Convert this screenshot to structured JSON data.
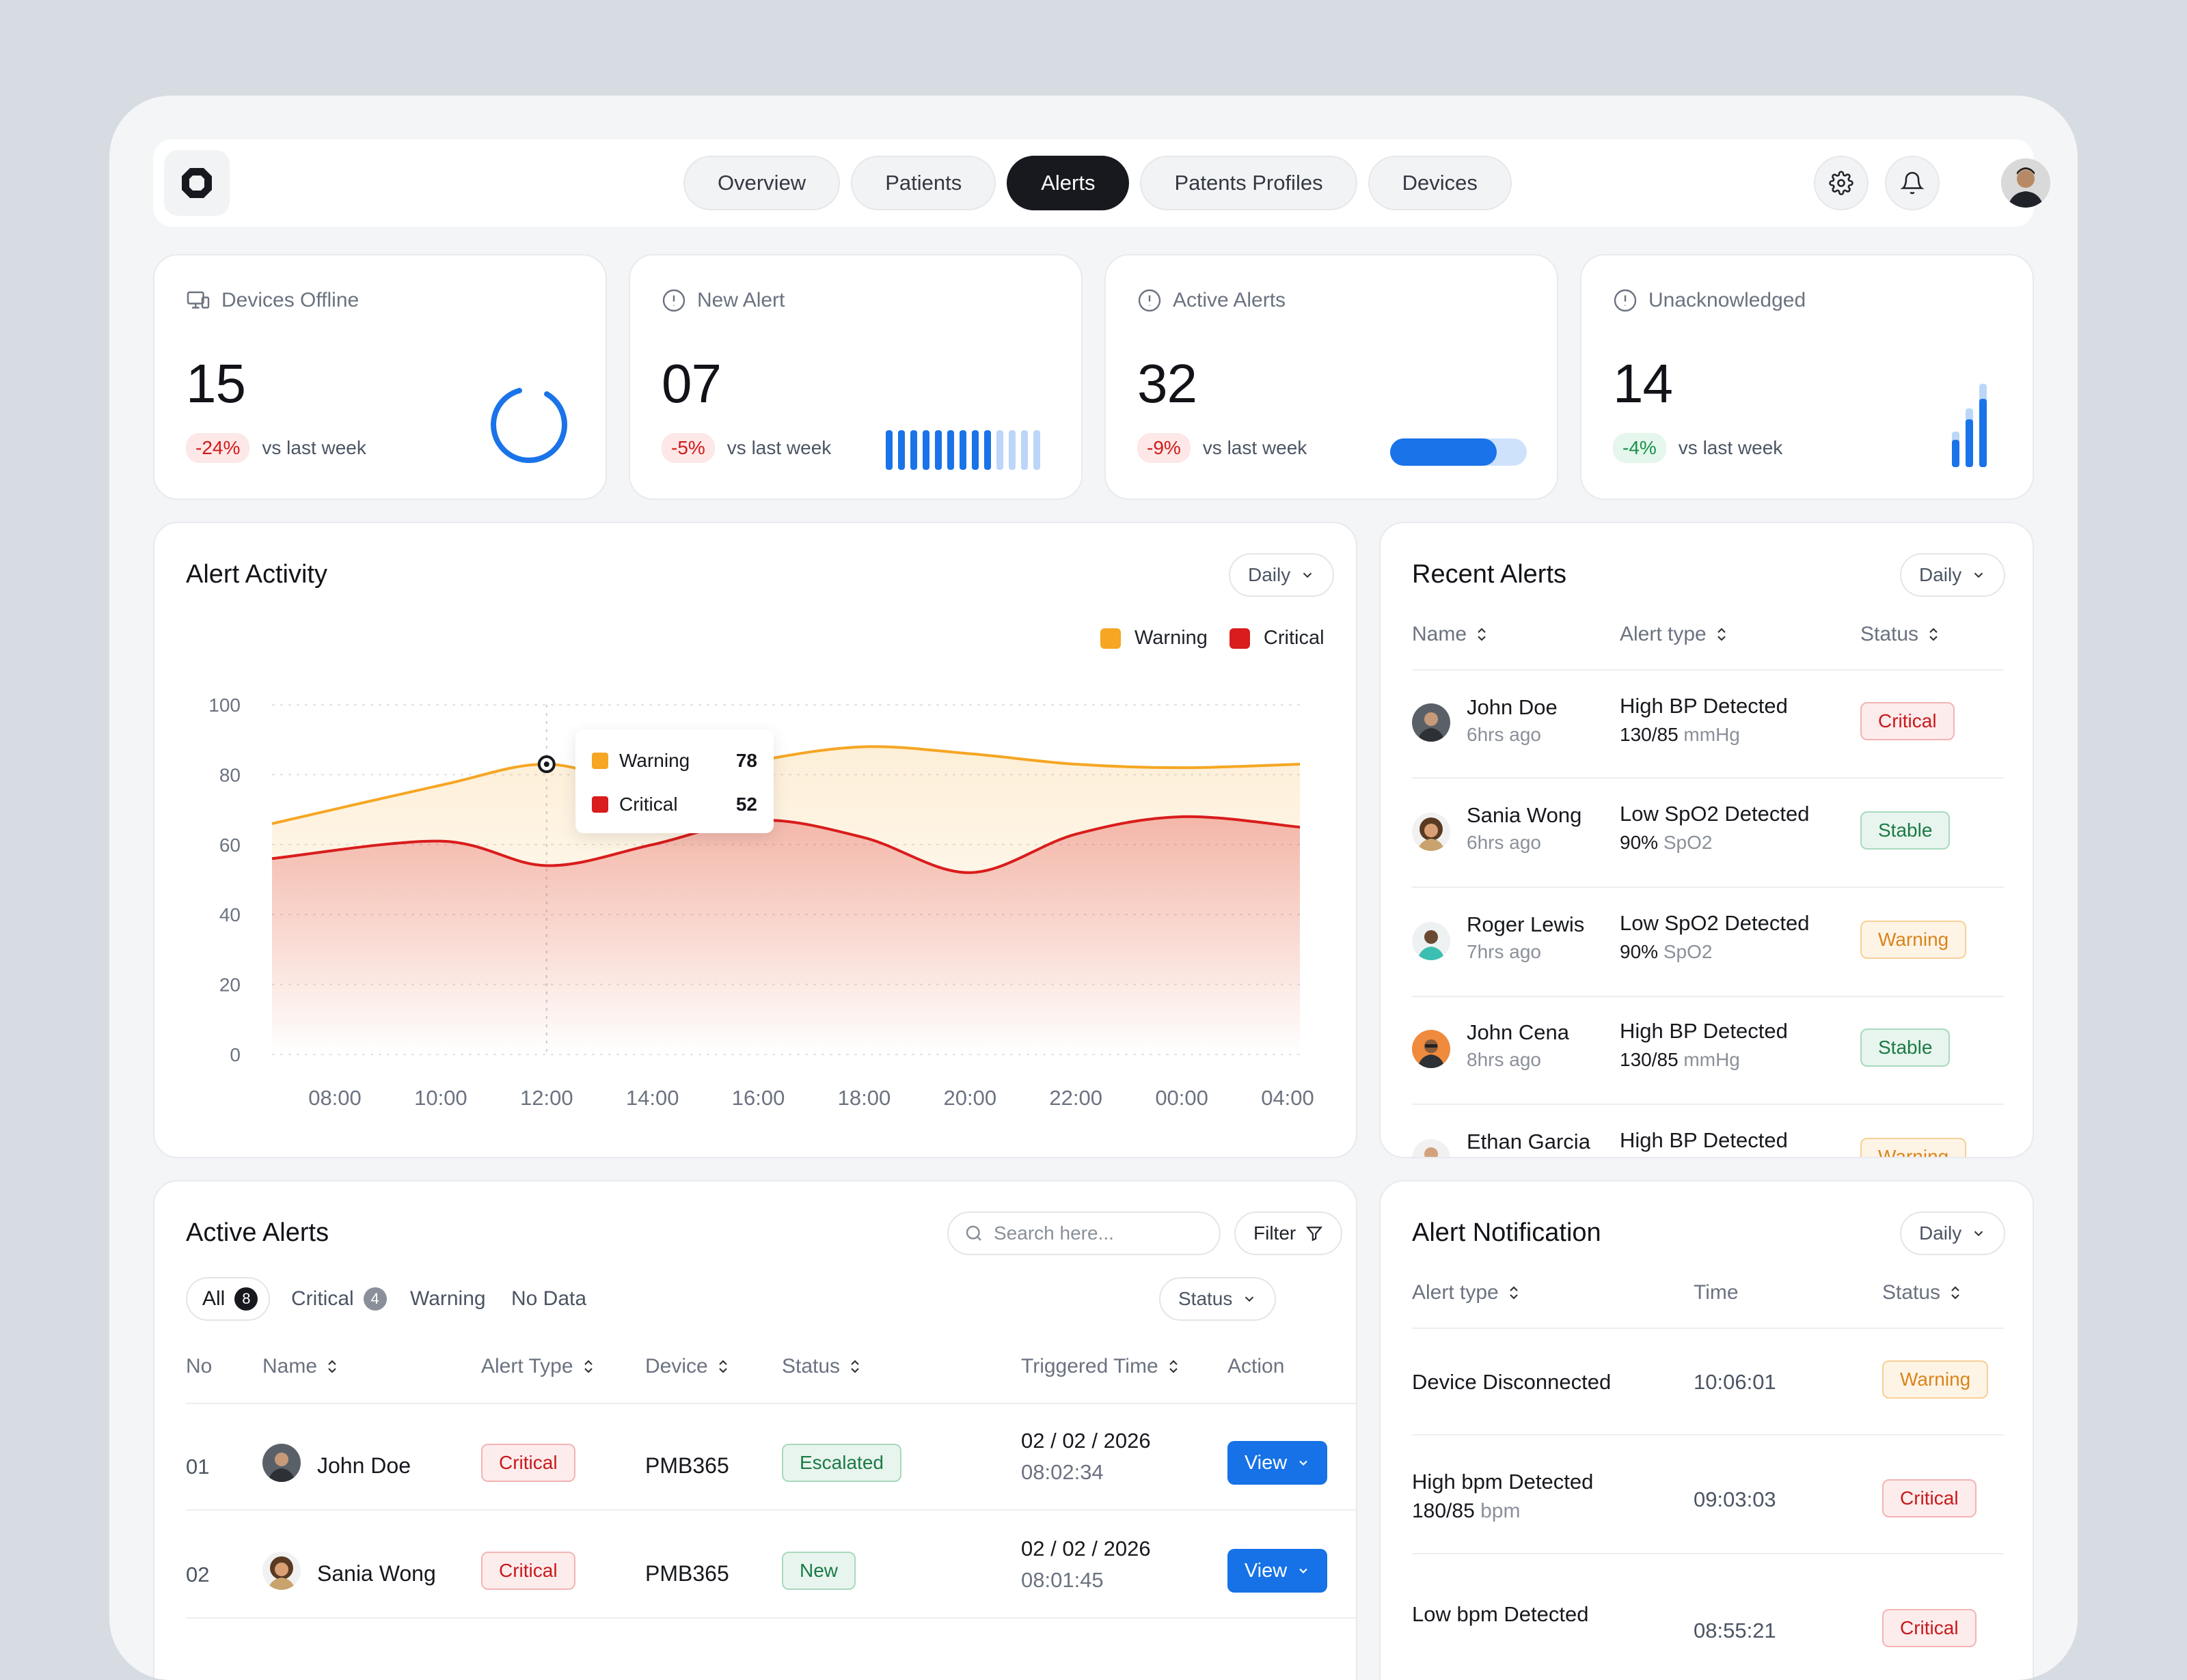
{
  "nav": {
    "tabs": [
      "Overview",
      "Patients",
      "Alerts",
      "Patents Profiles",
      "Devices"
    ],
    "active_tab": "Alerts"
  },
  "stats": [
    {
      "title": "Devices Offline",
      "value": "15",
      "change": "-24%",
      "change_label": "vs last week",
      "icon": "monitor-icon"
    },
    {
      "title": "New Alert",
      "value": "07",
      "change": "-5%",
      "change_label": "vs last week",
      "icon": "alert-circle-icon"
    },
    {
      "title": "Active Alerts",
      "value": "32",
      "change": "-9%",
      "change_label": "vs last week",
      "icon": "alert-circle-icon",
      "progress": 0.78
    },
    {
      "title": "Unacknowledged",
      "value": "14",
      "change": "-4%",
      "change_label": "vs last week",
      "icon": "alert-circle-icon"
    }
  ],
  "alert_activity": {
    "title": "Alert Activity",
    "period": "Daily",
    "tooltip": {
      "warning_label": "Warning",
      "warning_value": "78",
      "critical_label": "Critical",
      "critical_value": "52"
    }
  },
  "chart_data": {
    "type": "area",
    "title": "Alert Activity",
    "x": [
      "08:00",
      "10:00",
      "12:00",
      "14:00",
      "16:00",
      "18:00",
      "20:00",
      "22:00",
      "00:00",
      "04:00"
    ],
    "series": [
      {
        "name": "Warning",
        "color": "#f5a623",
        "values": [
          66,
          77,
          83,
          77,
          84,
          88,
          86,
          83,
          82,
          83
        ]
      },
      {
        "name": "Critical",
        "color": "#d91c1c",
        "values": [
          56,
          61,
          54,
          60,
          67,
          62,
          52,
          63,
          68,
          65
        ]
      }
    ],
    "yticks": [
      "0",
      "20",
      "40",
      "60",
      "80",
      "100"
    ],
    "ylim": [
      0,
      100
    ],
    "legend": "top-right",
    "grid": true
  },
  "recent_alerts": {
    "title": "Recent Alerts",
    "period": "Daily",
    "headers": {
      "name": "Name",
      "type": "Alert type",
      "status": "Status"
    },
    "rows": [
      {
        "name": "John Doe",
        "time": "6hrs ago",
        "type": "High BP Detected",
        "value": "130/85",
        "unit": "mmHg",
        "status": "Critical"
      },
      {
        "name": "Sania Wong",
        "time": "6hrs ago",
        "type": "Low SpO2 Detected",
        "value": "90%",
        "unit": "SpO2",
        "status": "Stable"
      },
      {
        "name": "Roger Lewis",
        "time": "7hrs ago",
        "type": "Low SpO2 Detected",
        "value": "90%",
        "unit": "SpO2",
        "status": "Warning"
      },
      {
        "name": "John Cena",
        "time": "8hrs ago",
        "type": "High BP Detected",
        "value": "130/85",
        "unit": "mmHg",
        "status": "Stable"
      },
      {
        "name": "Ethan Garcia",
        "time": "",
        "type": "High BP Detected",
        "value": "",
        "unit": "",
        "status": "Warning"
      }
    ]
  },
  "active_alerts": {
    "title": "Active Alerts",
    "search_placeholder": "Search here...",
    "filter_label": "Filter",
    "status_label": "Status",
    "filters": [
      {
        "label": "All",
        "count": "8"
      },
      {
        "label": "Critical",
        "count": "4"
      },
      {
        "label": "Warning",
        "count": ""
      },
      {
        "label": "No Data",
        "count": ""
      }
    ],
    "headers": {
      "no": "No",
      "name": "Name",
      "type": "Alert Type",
      "device": "Device",
      "status": "Status",
      "time": "Triggered Time",
      "action": "Action"
    },
    "rows": [
      {
        "no": "01",
        "name": "John Doe",
        "type": "Critical",
        "device": "PMB365",
        "status": "Escalated",
        "date": "02 / 02 / 2026",
        "time": "08:02:34",
        "action": "View"
      },
      {
        "no": "02",
        "name": "Sania Wong",
        "type": "Critical",
        "device": "PMB365",
        "status": "New",
        "date": "02 / 02 / 2026",
        "time": "08:01:45",
        "action": "View"
      }
    ]
  },
  "alert_notification": {
    "title": "Alert Notification",
    "period": "Daily",
    "headers": {
      "type": "Alert type",
      "time": "Time",
      "status": "Status"
    },
    "rows": [
      {
        "type": "Device Disconnected",
        "sub_value": "",
        "sub_unit": "",
        "time": "10:06:01",
        "status": "Warning"
      },
      {
        "type": "High bpm Detected",
        "sub_value": "180/85",
        "sub_unit": "bpm",
        "time": "09:03:03",
        "status": "Critical"
      },
      {
        "type": "Low bpm Detected",
        "sub_value": "",
        "sub_unit": "",
        "time": "08:55:21",
        "status": "Critical"
      }
    ]
  }
}
